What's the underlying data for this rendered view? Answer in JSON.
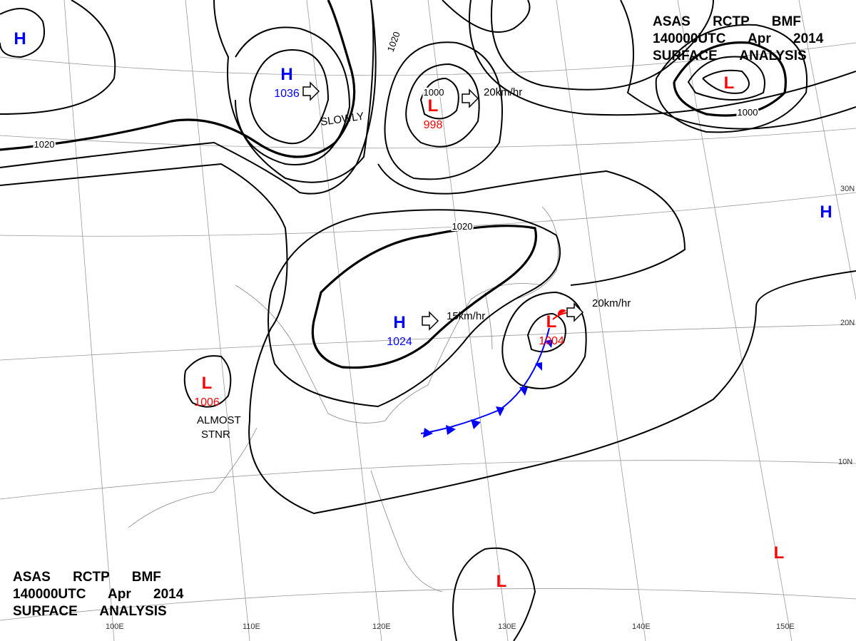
{
  "header_top": {
    "lines": [
      "ASAS RCTP BMF",
      "140000UTC Apr 2014",
      "SURFACE ANALYSIS"
    ]
  },
  "header_bottom": {
    "lines": [
      "ASAS RCTP BMF",
      "140000UTC Apr 2014",
      "SURFACE ANALYSIS"
    ]
  },
  "systems": [
    {
      "label": "H"
    },
    {
      "label": "H",
      "pressure": 1036
    },
    {
      "label": "L",
      "pressure": 998
    },
    {
      "label": "H",
      "pressure": 1024
    },
    {
      "label": "L"
    },
    {
      "label": "L",
      "pressure": 1004
    },
    {
      "label": "L",
      "pressure": 1006
    },
    {
      "label": "H"
    },
    {
      "label": "L"
    },
    {
      "label": "L"
    }
  ],
  "isobar_labels": [
    1020,
    1020,
    1000,
    1000,
    1020
  ],
  "motions": [
    "SLOWLY",
    "20km/hr",
    "15km/hr",
    "20km/hr",
    "ALMOST",
    "STNR"
  ],
  "longitudes": [
    "100E",
    "110E",
    "120E",
    "130E",
    "140E",
    "150E"
  ],
  "latitudes": [
    "30N",
    "20N",
    "10N"
  ]
}
